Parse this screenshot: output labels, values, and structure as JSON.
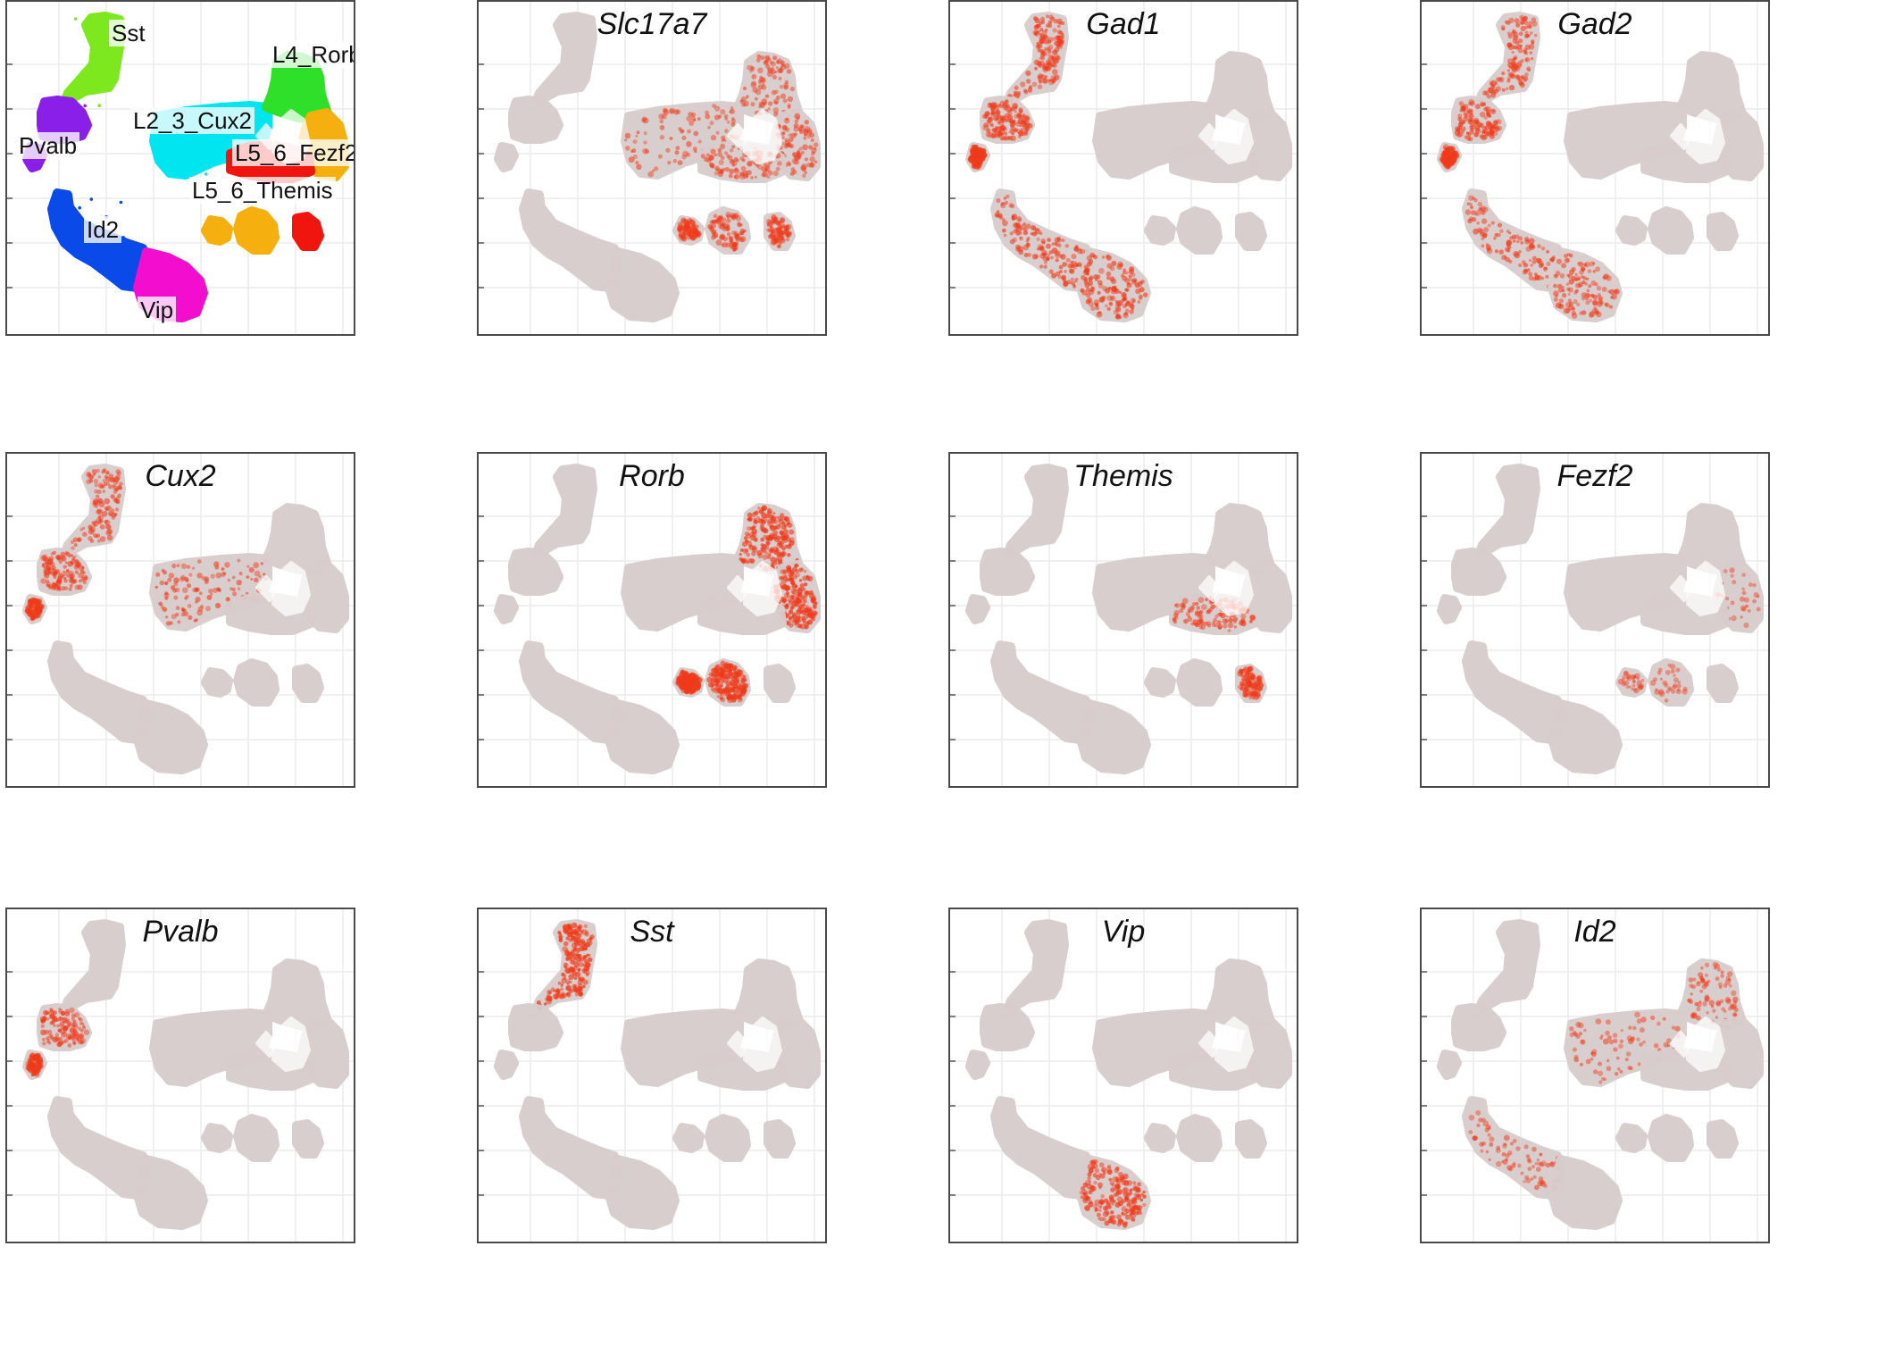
{
  "figure": {
    "cluster_labels": [
      "Sst",
      "L4_Rorb",
      "L2_3_Cux2",
      "Pvalb",
      "L5_6_Fezf2",
      "L5_6_Themis",
      "Id2",
      "Vip"
    ],
    "palette": {
      "background_cells": "#d8cccc",
      "expression_high": "#ef3b1b",
      "Sst": "#7de81e",
      "L4_Rorb": "#2ee02a",
      "L2_3_Cux2": "#00e5f0",
      "Pvalb": "#8a1fe8",
      "L5_6_Fezf2": "#f5b010",
      "L5_6_Themis": "#f0160f",
      "Id2": "#0a4ae8",
      "Vip": "#f20dcf"
    }
  },
  "chart_data": [
    {
      "type": "scatter",
      "title": "",
      "xlabel": "",
      "ylabel": "",
      "grid": true,
      "coloring": "cluster",
      "cluster_labels": [
        "Sst",
        "L4_Rorb",
        "L2_3_Cux2",
        "Pvalb",
        "L5_6_Fezf2",
        "L5_6_Themis",
        "Id2",
        "Vip"
      ]
    },
    {
      "type": "scatter",
      "title": "Slc17a7",
      "coloring": "expression",
      "high_clusters": [
        "L2_3_Cux2",
        "L4_Rorb",
        "L5_6_Fezf2",
        "L5_6_Themis"
      ],
      "intensity": 0.35
    },
    {
      "type": "scatter",
      "title": "Gad1",
      "coloring": "expression",
      "high_clusters": [
        "Sst",
        "Pvalb",
        "Id2",
        "Vip"
      ],
      "intensity": 0.55
    },
    {
      "type": "scatter",
      "title": "Gad2",
      "coloring": "expression",
      "high_clusters": [
        "Sst",
        "Pvalb",
        "Id2",
        "Vip"
      ],
      "intensity": 0.45
    },
    {
      "type": "scatter",
      "title": "Cux2",
      "coloring": "expression",
      "high_clusters": [
        "L2_3_Cux2",
        "Sst",
        "Pvalb"
      ],
      "intensity": 0.45
    },
    {
      "type": "scatter",
      "title": "Rorb",
      "coloring": "expression",
      "high_clusters": [
        "L4_Rorb",
        "L5_6_Fezf2"
      ],
      "intensity": 0.75
    },
    {
      "type": "scatter",
      "title": "Themis",
      "coloring": "expression",
      "high_clusters": [
        "L5_6_Themis"
      ],
      "intensity": 0.45
    },
    {
      "type": "scatter",
      "title": "Fezf2",
      "coloring": "expression",
      "high_clusters": [
        "L5_6_Fezf2"
      ],
      "intensity": 0.12
    },
    {
      "type": "scatter",
      "title": "Pvalb",
      "coloring": "expression",
      "high_clusters": [
        "Pvalb"
      ],
      "intensity": 0.45
    },
    {
      "type": "scatter",
      "title": "Sst",
      "coloring": "expression",
      "high_clusters": [
        "Sst"
      ],
      "intensity": 0.75
    },
    {
      "type": "scatter",
      "title": "Vip",
      "coloring": "expression",
      "high_clusters": [
        "Vip"
      ],
      "intensity": 0.7
    },
    {
      "type": "scatter",
      "title": "Id2",
      "coloring": "expression",
      "high_clusters": [
        "Id2",
        "L2_3_Cux2",
        "L4_Rorb"
      ],
      "intensity": 0.3
    }
  ]
}
